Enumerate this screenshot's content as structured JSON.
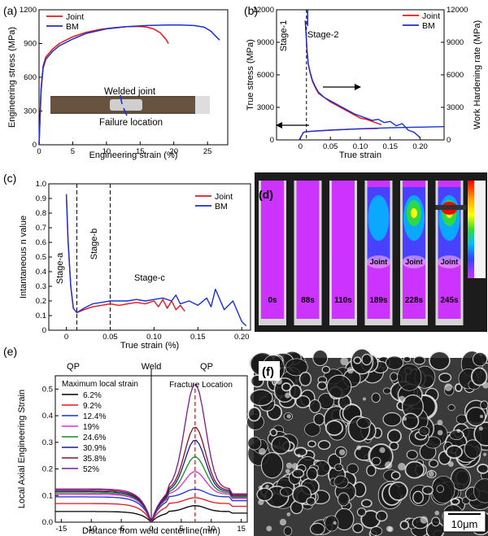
{
  "colors": {
    "joint": "#e8141c",
    "bm": "#1a2fd4",
    "sem_bg": "#3a3a3a"
  },
  "chart_data": [
    {
      "panel": "(a)",
      "type": "line",
      "xlabel": "Engineering strain (%)",
      "ylabel": "Engineering stress (MPa)",
      "xlim": [
        0,
        28
      ],
      "ylim": [
        0,
        1200
      ],
      "xticks": [
        "0",
        "5",
        "10",
        "15",
        "20",
        "25"
      ],
      "yticks": [
        "0",
        "300",
        "600",
        "900",
        "1200"
      ],
      "legend_position": "top-left",
      "series": [
        {
          "name": "Joint",
          "color_key": "joint",
          "x": [
            0,
            0.3,
            0.6,
            1,
            2,
            3,
            5,
            7,
            9,
            11,
            13,
            15,
            16,
            17,
            18,
            18.8,
            19.2
          ],
          "y": [
            0,
            500,
            700,
            780,
            850,
            900,
            960,
            1000,
            1025,
            1040,
            1050,
            1052,
            1045,
            1030,
            995,
            940,
            900
          ]
        },
        {
          "name": "BM",
          "color_key": "bm",
          "x": [
            0,
            0.3,
            0.6,
            1,
            2,
            3,
            5,
            7,
            10,
            13,
            16,
            19,
            21,
            23,
            24.5,
            25.5,
            26.3,
            26.8
          ],
          "y": [
            0,
            480,
            680,
            760,
            830,
            880,
            940,
            990,
            1030,
            1050,
            1060,
            1065,
            1065,
            1060,
            1045,
            1010,
            960,
            930
          ]
        }
      ],
      "annotations": [
        "Welded joint",
        "Failure location"
      ]
    },
    {
      "panel": "(b)",
      "type": "line",
      "xlabel": "True strain",
      "ylabel": "True stress (MPa)",
      "ylabel_right": "Work Hardening rate (MPa)",
      "xlim": [
        -0.04,
        0.24
      ],
      "ylim": [
        0,
        12000
      ],
      "xticks": [
        "0",
        "0.05",
        "0.10",
        "0.15",
        "0.20"
      ],
      "yticks": [
        "0",
        "3000",
        "6000",
        "9000",
        "12000"
      ],
      "legend_position": "top-right",
      "stage_labels": [
        "Stage-1",
        "Stage-2"
      ],
      "series": [
        {
          "name": "Joint",
          "role": "hardening",
          "color_key": "joint",
          "x": [
            0.008,
            0.011,
            0.013,
            0.016,
            0.02,
            0.025,
            0.03,
            0.04,
            0.05,
            0.06,
            0.07,
            0.08,
            0.09,
            0.1,
            0.11,
            0.12,
            0.13,
            0.135
          ],
          "y": [
            11000,
            8300,
            7000,
            6200,
            5400,
            4800,
            4300,
            3900,
            3500,
            3200,
            2900,
            2600,
            2300,
            2000,
            1900,
            1700,
            1500,
            1400
          ]
        },
        {
          "name": "BM",
          "role": "hardening",
          "color_key": "bm",
          "x": [
            0.008,
            0.011,
            0.013,
            0.016,
            0.02,
            0.025,
            0.03,
            0.04,
            0.05,
            0.06,
            0.07,
            0.08,
            0.09,
            0.1,
            0.11,
            0.12,
            0.13,
            0.14,
            0.15,
            0.16,
            0.17,
            0.18,
            0.19,
            0.2
          ],
          "y": [
            11000,
            8200,
            7000,
            6300,
            5500,
            4900,
            4400,
            3900,
            3600,
            3300,
            3000,
            2700,
            2400,
            2200,
            2000,
            1800,
            1900,
            1600,
            1700,
            1300,
            1500,
            900,
            700,
            200
          ]
        },
        {
          "name": "Joint",
          "role": "stress",
          "color_key": "joint",
          "x": [
            -0.002,
            0.005,
            0.01,
            0.02,
            0.05,
            0.08,
            0.1,
            0.13
          ],
          "y": [
            0,
            700,
            760,
            800,
            900,
            980,
            1020,
            1060
          ]
        },
        {
          "name": "BM",
          "role": "stress",
          "color_key": "bm",
          "x": [
            -0.002,
            0.005,
            0.01,
            0.02,
            0.05,
            0.1,
            0.15,
            0.2,
            0.24
          ],
          "y": [
            0,
            700,
            760,
            800,
            900,
            1030,
            1120,
            1180,
            1220
          ]
        }
      ]
    },
    {
      "panel": "(c)",
      "type": "line",
      "xlabel": "True strain (%)",
      "ylabel": "Intantaneous n value",
      "xlim": [
        -0.02,
        0.21
      ],
      "ylim": [
        0,
        1.0
      ],
      "xticks": [
        "0",
        "0.05",
        "0.10",
        "0.15",
        "0.20"
      ],
      "yticks": [
        "0",
        "0.1",
        "0.2",
        "0.3",
        "0.4",
        "0.5",
        "0.6",
        "0.7",
        "0.8",
        "0.9",
        "1.0"
      ],
      "legend_position": "top-right",
      "stage_labels": [
        "Stage-a",
        "Stage-b",
        "Stage-c"
      ],
      "series": [
        {
          "name": "Joint",
          "color_key": "joint",
          "x": [
            0,
            0.002,
            0.005,
            0.008,
            0.012,
            0.02,
            0.03,
            0.04,
            0.05,
            0.06,
            0.07,
            0.08,
            0.09,
            0.1,
            0.105,
            0.11,
            0.115,
            0.12,
            0.125,
            0.13,
            0.135
          ],
          "y": [
            0.92,
            0.6,
            0.3,
            0.15,
            0.12,
            0.14,
            0.16,
            0.17,
            0.18,
            0.17,
            0.18,
            0.19,
            0.18,
            0.2,
            0.16,
            0.21,
            0.15,
            0.2,
            0.14,
            0.17,
            0.13
          ]
        },
        {
          "name": "BM",
          "color_key": "bm",
          "x": [
            0,
            0.002,
            0.005,
            0.008,
            0.012,
            0.02,
            0.03,
            0.04,
            0.05,
            0.06,
            0.07,
            0.08,
            0.09,
            0.1,
            0.11,
            0.12,
            0.125,
            0.13,
            0.14,
            0.15,
            0.16,
            0.165,
            0.17,
            0.18,
            0.19,
            0.2,
            0.205
          ],
          "y": [
            0.93,
            0.62,
            0.3,
            0.15,
            0.12,
            0.15,
            0.18,
            0.19,
            0.2,
            0.2,
            0.2,
            0.21,
            0.2,
            0.21,
            0.22,
            0.2,
            0.24,
            0.18,
            0.2,
            0.17,
            0.22,
            0.16,
            0.28,
            0.14,
            0.2,
            0.06,
            0.03
          ]
        }
      ]
    },
    {
      "panel": "(e)",
      "type": "line",
      "xlabel": "Distance from weld centerline(mm)",
      "ylabel": "Local Axial Engineering Strain",
      "xlim": [
        -16,
        16
      ],
      "ylim": [
        0,
        0.55
      ],
      "xticks": [
        "-15",
        "-10",
        "-5",
        "0",
        "5",
        "10",
        "15"
      ],
      "yticks": [
        "0.0",
        "0.1",
        "0.2",
        "0.3",
        "0.4",
        "0.5"
      ],
      "legend_title": "Maximum local strain",
      "top_labels": [
        "QP",
        "Weld",
        "QP"
      ],
      "annotation": "Fracture Location",
      "fracture_x": 7.3,
      "series": [
        {
          "name": "6.2%",
          "color": "#000000",
          "base": 0.04,
          "peak": 0.062
        },
        {
          "name": "9.2%",
          "color": "#e8141c",
          "base": 0.07,
          "peak": 0.092
        },
        {
          "name": "12.4%",
          "color": "#1a2fd4",
          "base": 0.095,
          "peak": 0.124
        },
        {
          "name": "19%",
          "color": "#e62ad6",
          "base": 0.105,
          "peak": 0.19
        },
        {
          "name": "24.6%",
          "color": "#178a1c",
          "base": 0.11,
          "peak": 0.246
        },
        {
          "name": "30.9%",
          "color": "#1c1c8c",
          "base": 0.115,
          "peak": 0.309
        },
        {
          "name": "35.8%",
          "color": "#8a1020",
          "base": 0.12,
          "peak": 0.358
        },
        {
          "name": "52%",
          "color": "#7a1b8c",
          "base": 0.125,
          "peak": 0.52
        }
      ]
    }
  ],
  "panel_labels": {
    "a": "(a)",
    "b": "(b)",
    "c": "(c)",
    "d": "(d)",
    "e": "(e)",
    "f": "(f)"
  },
  "dic": {
    "times": [
      "0s",
      "88s",
      "110s",
      "189s",
      "228s",
      "245s"
    ],
    "joint_label": "Joint"
  },
  "sem": {
    "scale_bar": "10μm"
  }
}
